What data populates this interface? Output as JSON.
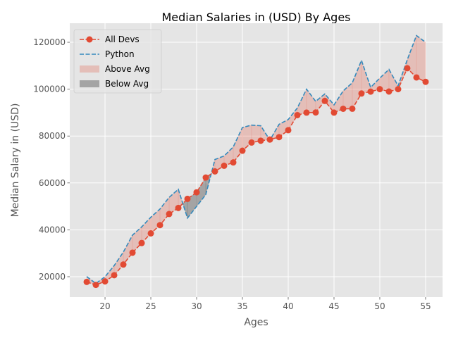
{
  "chart_data": {
    "type": "line",
    "title": "Median Salaries in (USD) By Ages",
    "xlabel": "Ages",
    "ylabel": "Median Salary in (USD)",
    "xlim": [
      16.15,
      56.85
    ],
    "ylim": [
      11280,
      128120
    ],
    "xticks": [
      20,
      25,
      30,
      35,
      40,
      45,
      50,
      55
    ],
    "yticks": [
      20000,
      40000,
      60000,
      80000,
      100000,
      120000
    ],
    "grid": true,
    "legend_position": "top-left",
    "x": [
      18,
      19,
      20,
      21,
      22,
      23,
      24,
      25,
      26,
      27,
      28,
      29,
      30,
      31,
      32,
      33,
      34,
      35,
      36,
      37,
      38,
      39,
      40,
      41,
      42,
      43,
      44,
      45,
      46,
      47,
      48,
      49,
      50,
      51,
      52,
      53,
      54,
      55
    ],
    "series": [
      {
        "name": "All Devs",
        "style": "dashed-line-circle-markers",
        "color": "#E24A33",
        "values": [
          17784,
          16500,
          18012,
          20628,
          25206,
          30252,
          34368,
          38496,
          42000,
          46752,
          49320,
          53200,
          56000,
          62316,
          64928,
          67317,
          68748,
          73752,
          77232,
          78000,
          78508,
          79536,
          82488,
          88935,
          90000,
          90056,
          95000,
          90000,
          91633,
          91660,
          98150,
          98964,
          100000,
          98988,
          100000,
          108923,
          105000,
          103117
        ]
      },
      {
        "name": "Python",
        "style": "dashed-line",
        "color": "#348ABD",
        "values": [
          20046,
          17100,
          20000,
          24744,
          30500,
          37732,
          41247,
          45372,
          48876,
          53850,
          57287,
          45000,
          50000,
          55000,
          70000,
          71496,
          75370,
          83640,
          84666,
          84392,
          78254,
          85000,
          87038,
          91991,
          100000,
          94796,
          97962,
          93302,
          99240,
          102736,
          112285,
          100771,
          104708,
          108423,
          101407,
          112542,
          122870,
          120000
        ]
      }
    ],
    "fills": [
      {
        "name": "Above Avg",
        "color": "#E24A33",
        "alpha": 0.25
      },
      {
        "name": "Below Avg",
        "color": "#555555",
        "alpha": 0.45
      }
    ],
    "colors": {
      "plot_background": "#E5E5E5",
      "grid": "#FFFFFF",
      "tick_text": "#555555"
    }
  }
}
